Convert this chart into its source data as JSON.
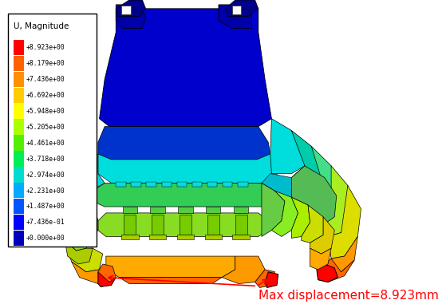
{
  "legend_title": "U, Magnitude",
  "colorbar_values": [
    "+8.923e+00",
    "+8.179e+00",
    "+7.436e+00",
    "+6.692e+00",
    "+5.948e+00",
    "+5.205e+00",
    "+4.461e+00",
    "+3.718e+00",
    "+2.974e+00",
    "+2.231e+00",
    "+1.487e+00",
    "+7.436e-01",
    "+0.000e+00"
  ],
  "swatch_colors": [
    "#ff0000",
    "#ff6000",
    "#ff9000",
    "#ffcc00",
    "#ffff00",
    "#aaff00",
    "#55ee00",
    "#00ee55",
    "#00ddcc",
    "#00aaff",
    "#0055ff",
    "#0000ff",
    "#0000bb"
  ],
  "annotation_text": "Max displacement=8.923mm",
  "annotation_color": "red",
  "annotation_fontsize": 11,
  "bg_color": "#ffffff"
}
